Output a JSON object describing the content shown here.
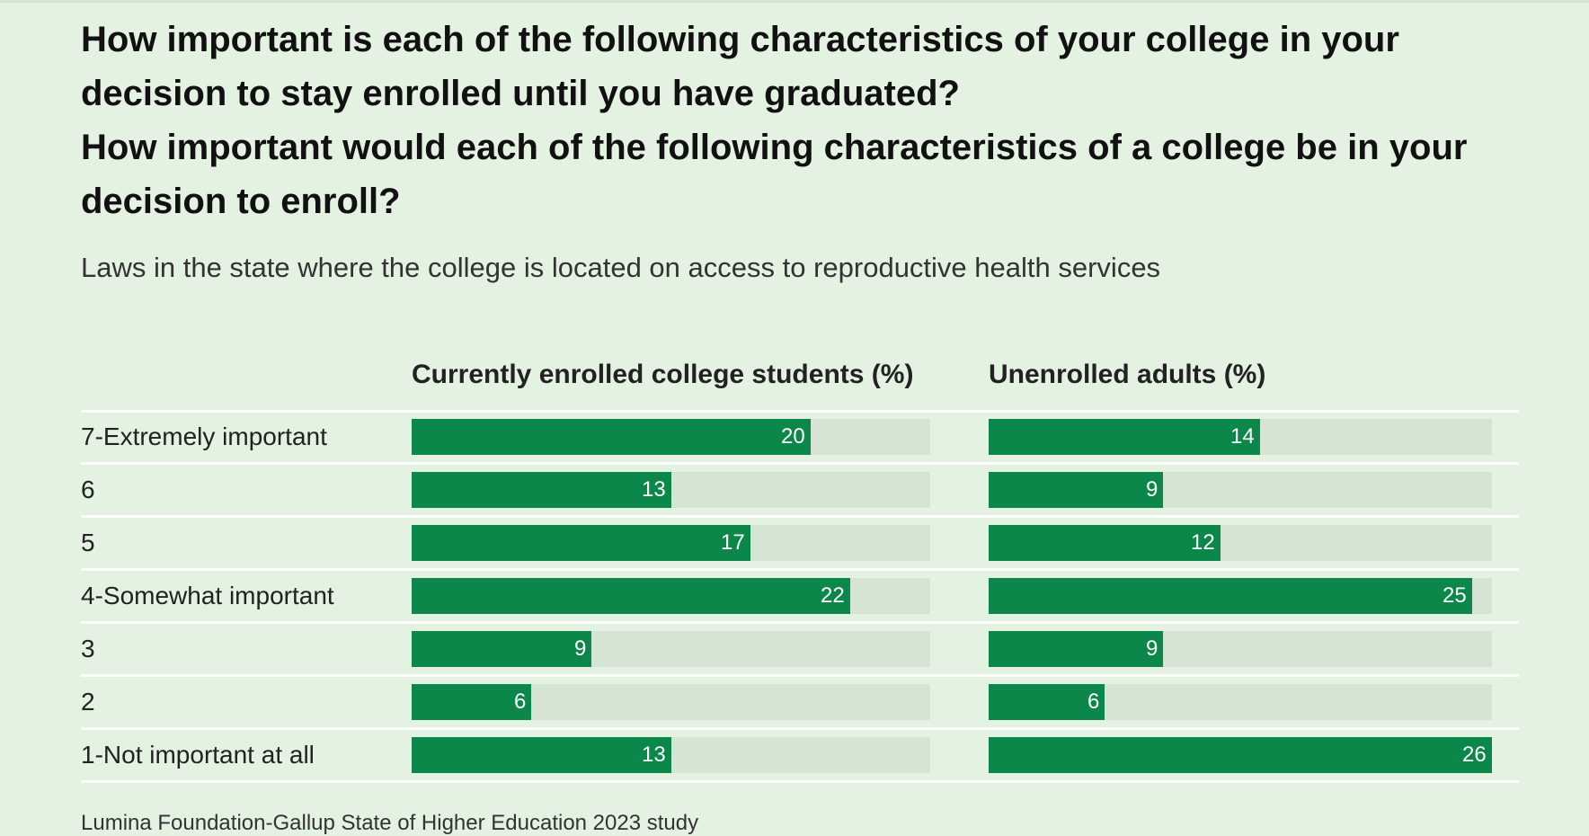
{
  "chart_data": {
    "type": "bar",
    "title_lines": [
      "How important is each of the following characteristics of your college in your",
      "decision to stay enrolled until you have graduated?",
      "How important would each of the following characteristics of a college be in your",
      "decision to enroll?"
    ],
    "subtitle": "Laws in the state where the college is located on access to reproductive health services",
    "categories": [
      "7-Extremely important",
      "6",
      "5",
      "4-Somewhat important",
      "3",
      "2",
      "1-Not important at all"
    ],
    "series": [
      {
        "name": "Currently enrolled college students (%)",
        "values": [
          20,
          13,
          17,
          22,
          9,
          6,
          13
        ]
      },
      {
        "name": "Unenrolled adults (%)",
        "values": [
          14,
          9,
          12,
          25,
          9,
          6,
          26
        ]
      }
    ],
    "xlim": [
      0,
      26
    ],
    "grid": false,
    "legend": "column headers",
    "colors": {
      "bar": "#0a8749",
      "track": "#d6e4d3",
      "background": "#e3f2e1"
    }
  },
  "footer": "Lumina Foundation-Gallup State of Higher Education 2023 study"
}
